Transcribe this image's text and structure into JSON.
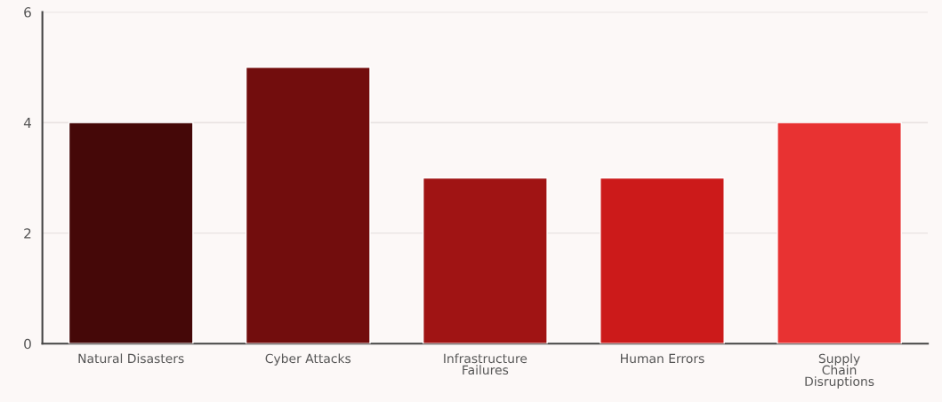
{
  "chart_data": {
    "type": "bar",
    "categories": [
      "Natural Disasters",
      "Cyber Attacks",
      "Infrastructure\nFailures",
      "Human Errors",
      "Supply\nChain\nDisruptions"
    ],
    "values": [
      4,
      5,
      3,
      3,
      4
    ],
    "colors": [
      "#450808",
      "#720d0d",
      "#a01414",
      "#cc1a1a",
      "#e83232"
    ],
    "ylim": [
      0,
      6
    ],
    "yticks": [
      0,
      2,
      4,
      6
    ],
    "grid": "y"
  }
}
